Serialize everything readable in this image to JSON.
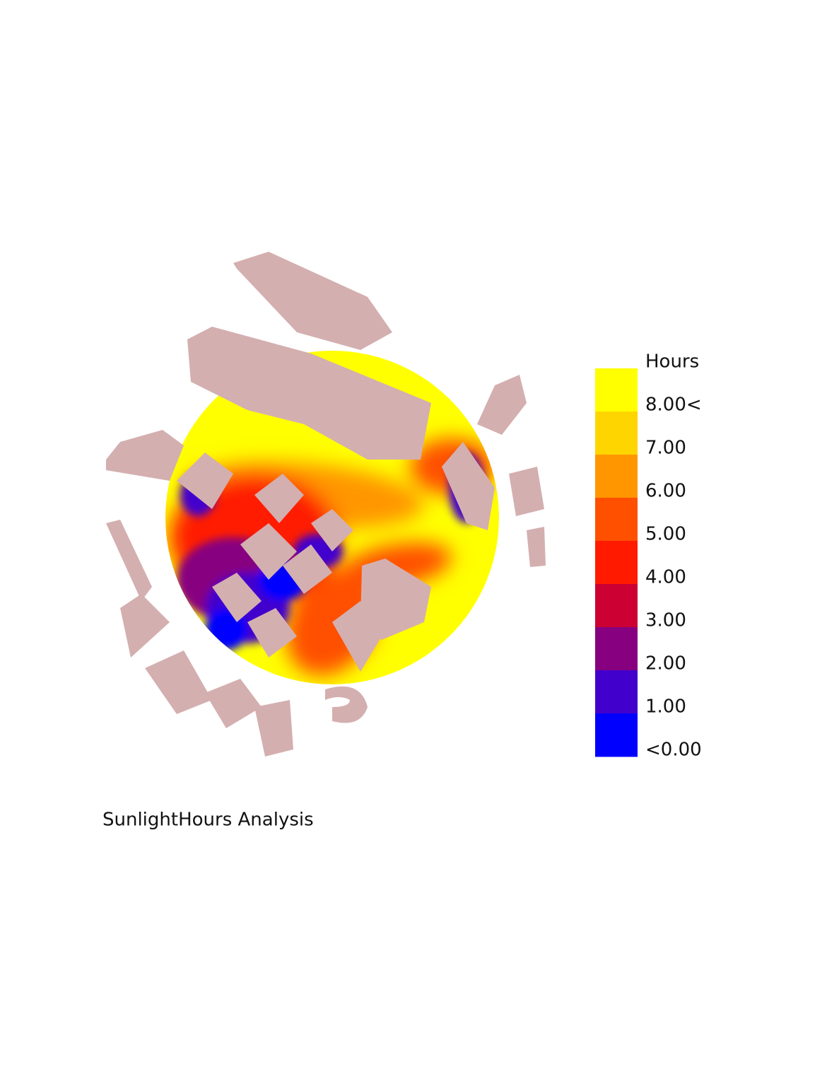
{
  "legend": {
    "title": "Hours",
    "labels": [
      "8.00<",
      "7.00",
      "6.00",
      "5.00",
      "4.00",
      "3.00",
      "2.00",
      "1.00",
      "<0.00"
    ],
    "colors": [
      "#ffff00",
      "#ffd500",
      "#ff9600",
      "#ff5000",
      "#ff1a00",
      "#cc0033",
      "#870080",
      "#4200cc",
      "#0000ff"
    ]
  },
  "caption": "SunlightHours Analysis"
}
